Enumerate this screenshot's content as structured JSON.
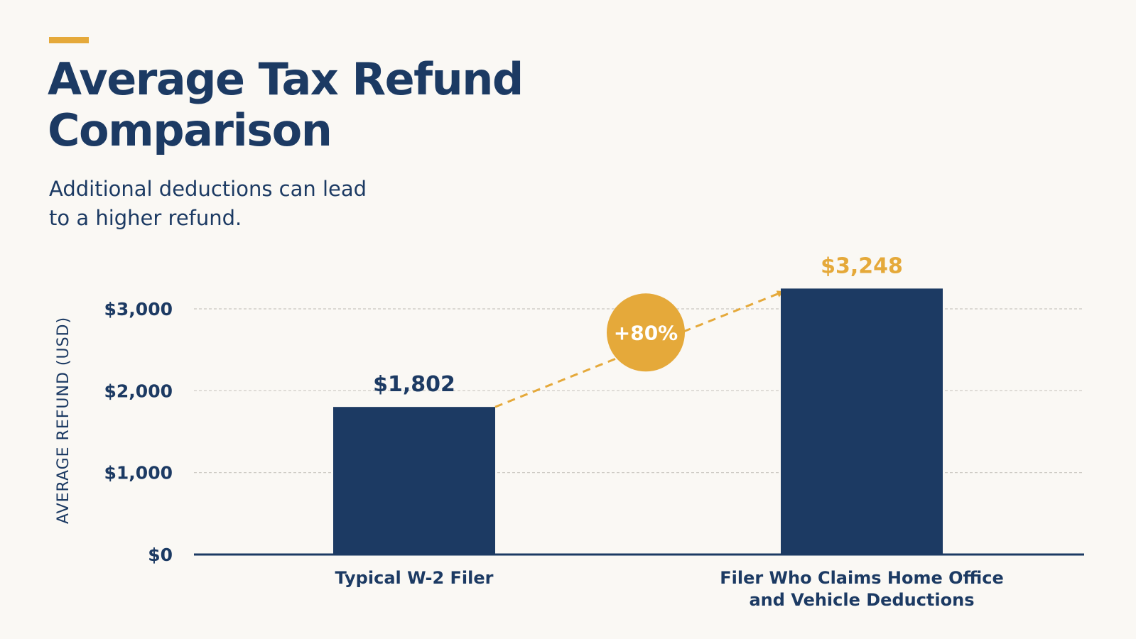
{
  "header": {
    "title": "Average Tax Refund Comparison",
    "subtitle": "Additional deductions can lead to a higher refund."
  },
  "colors": {
    "bar": "#1c3a63",
    "accent": "#e5a93a",
    "grid": "#c9c6c0",
    "text": "#1c3a63"
  },
  "chart_data": {
    "type": "bar",
    "title": "Average Tax Refund Comparison",
    "subtitle": "Additional deductions can lead to a higher refund.",
    "xlabel": "",
    "ylabel": "AVERAGE REFUND (USD)",
    "categories": [
      [
        "Typical W-2 Filer"
      ],
      [
        "Filer Who Claims Home Office",
        "and Vehicle Deductions"
      ]
    ],
    "values": [
      1802,
      3248
    ],
    "value_labels": [
      "$1,802",
      "$3,248"
    ],
    "ylim": [
      0,
      3000
    ],
    "yticks": [
      0,
      1000,
      2000,
      3000
    ],
    "ytick_labels": [
      "$0",
      "$1,000",
      "$2,000",
      "$3,000"
    ],
    "grid": true,
    "grid_style": "dashed",
    "legend": "none",
    "annotation": {
      "text": "+80%",
      "from_category": 0,
      "to_category": 1
    }
  }
}
